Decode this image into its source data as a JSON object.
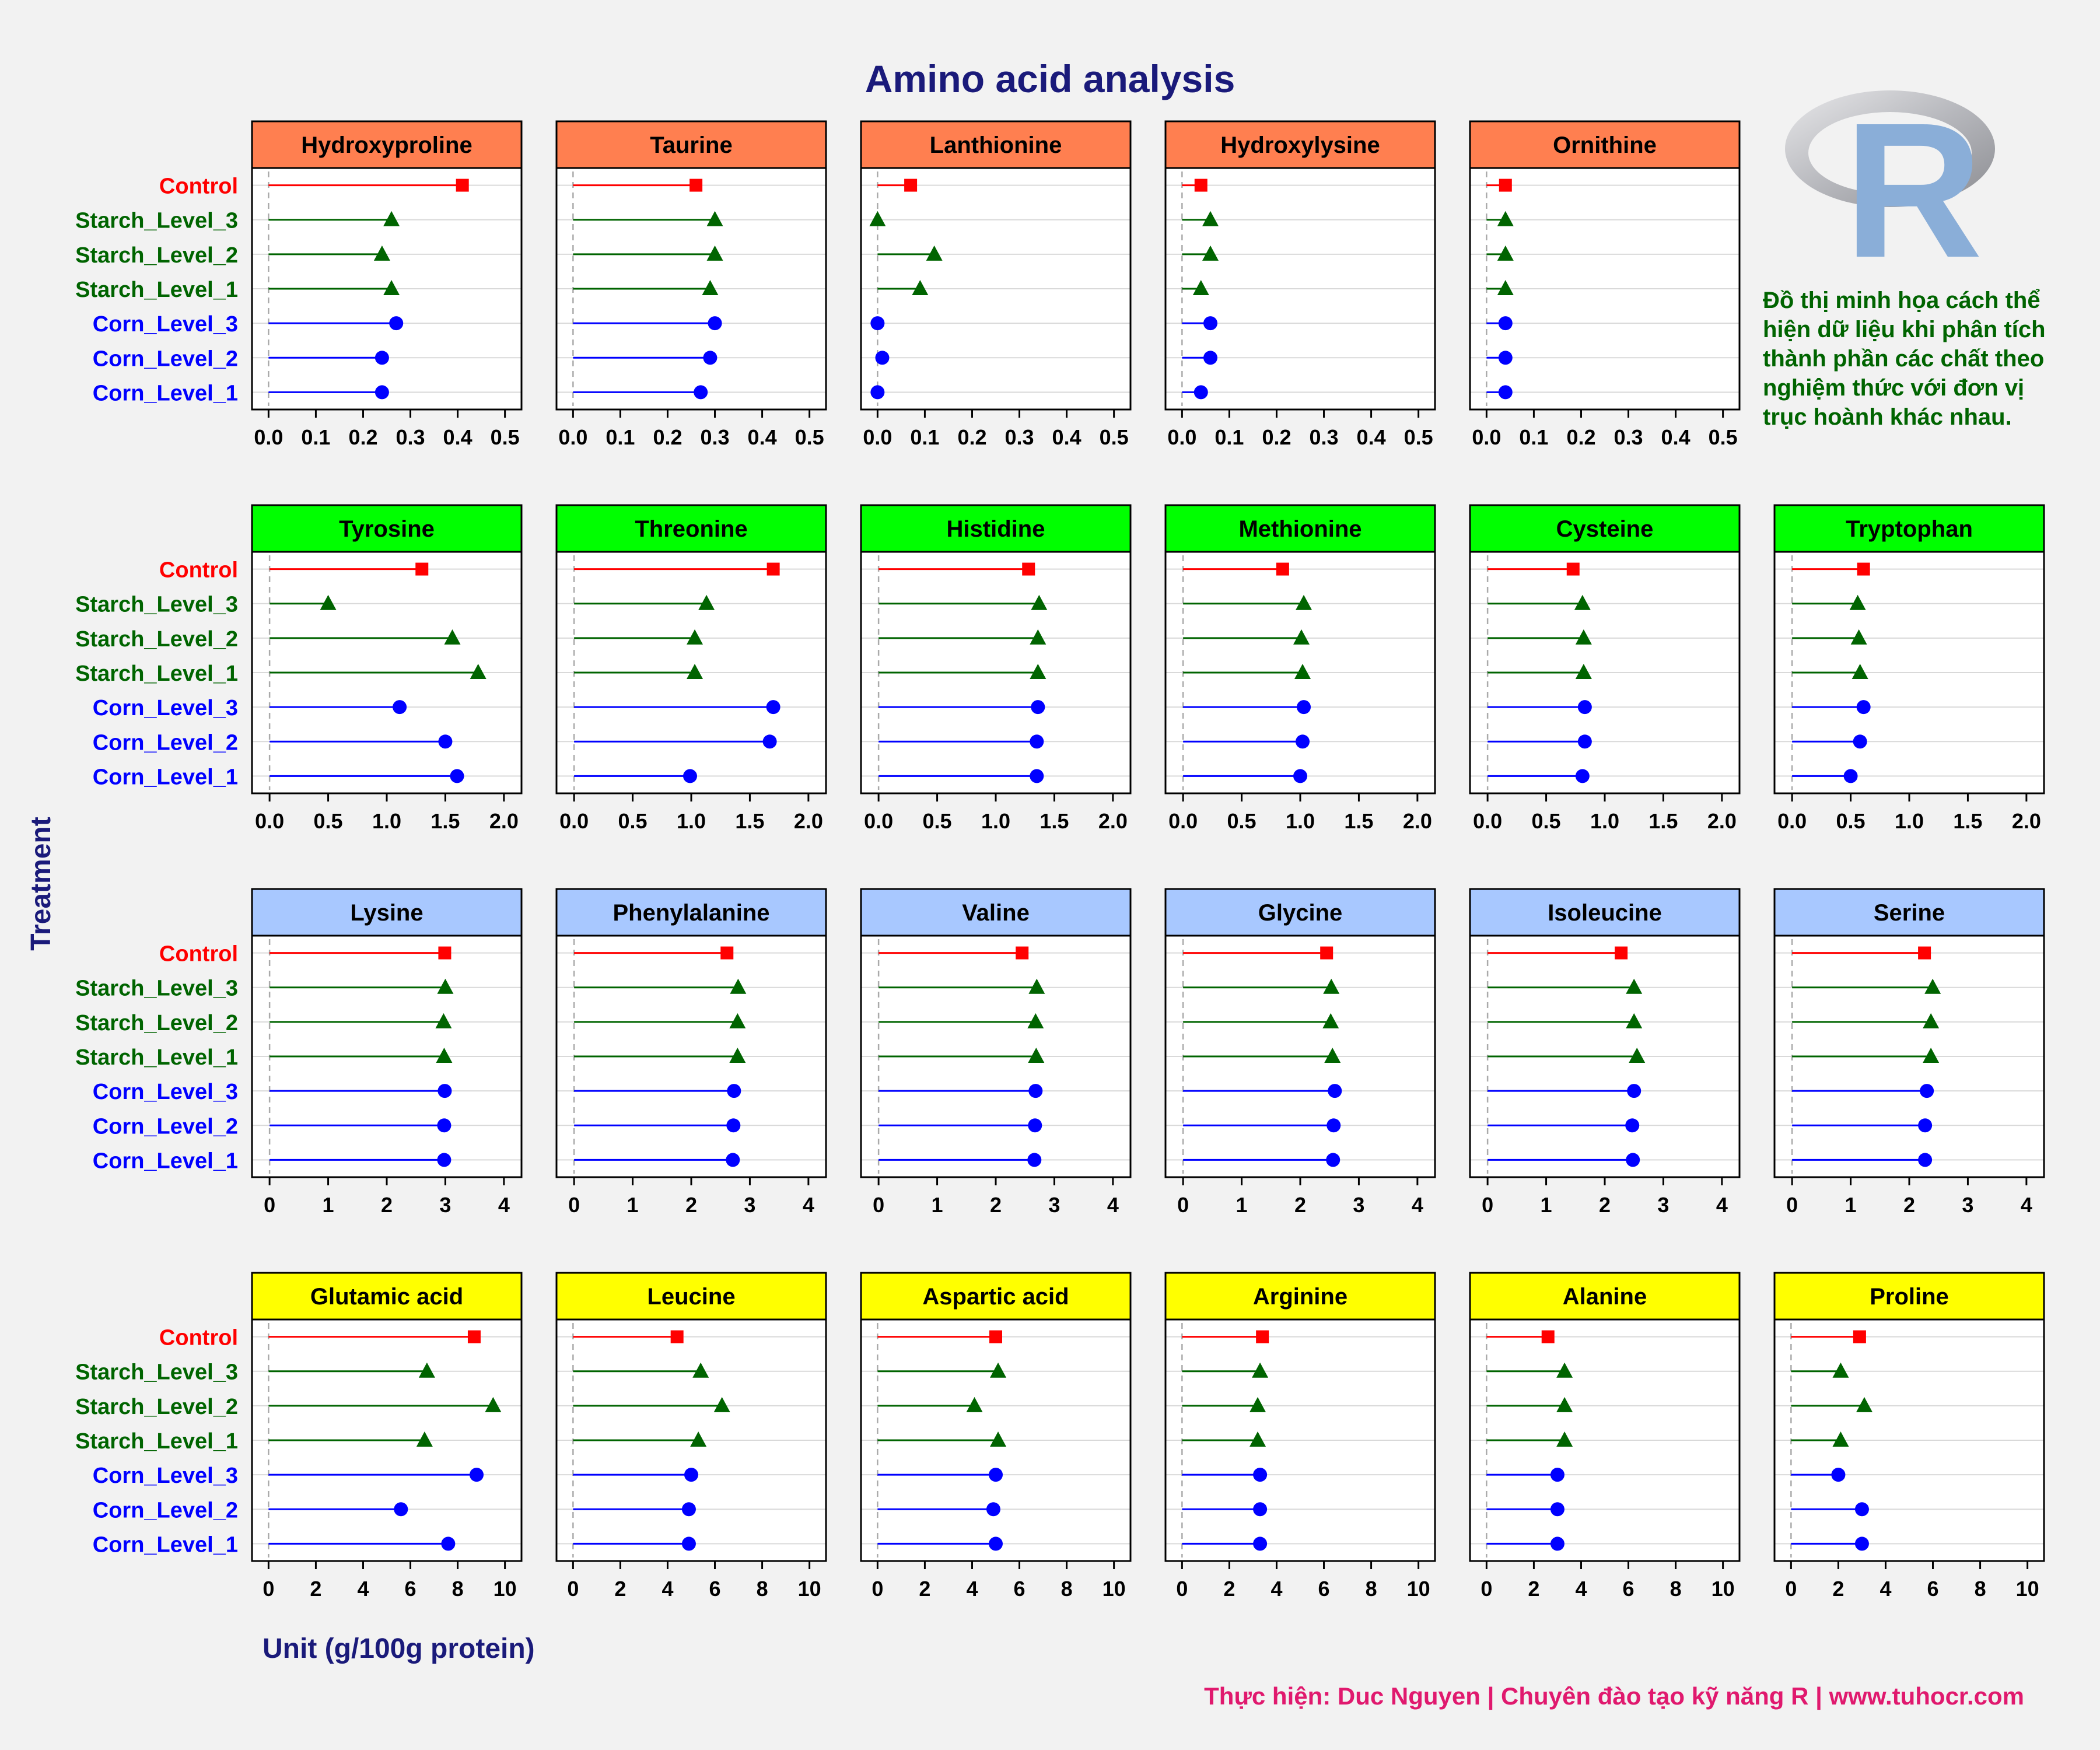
{
  "chart_data": {
    "type": "lollipop",
    "title": "Amino acid analysis",
    "xlabel": "Unit (g/100g protein)",
    "ylabel": "Treatment",
    "treatments": [
      "Control",
      "Starch_Level_3",
      "Starch_Level_2",
      "Starch_Level_1",
      "Corn_Level_3",
      "Corn_Level_2",
      "Corn_Level_1"
    ],
    "treatment_colors": [
      "#ff0000",
      "#006400",
      "#006400",
      "#006400",
      "#0000ff",
      "#0000ff",
      "#0000ff"
    ],
    "treatment_markers": [
      "square",
      "triangle",
      "triangle",
      "triangle",
      "circle",
      "circle",
      "circle"
    ],
    "rows": [
      {
        "strip_color": "#ff7f50",
        "xlim": [
          -0.035,
          0.535
        ],
        "ticks": [
          0,
          0.1,
          0.2,
          0.3,
          0.4,
          0.5
        ],
        "tick_labels": [
          "0.0",
          "0.1",
          "0.2",
          "0.3",
          "0.4",
          "0.5"
        ],
        "panels": [
          {
            "name": "Hydroxyproline",
            "values": [
              0.41,
              0.26,
              0.24,
              0.26,
              0.27,
              0.24,
              0.24
            ]
          },
          {
            "name": "Taurine",
            "values": [
              0.26,
              0.3,
              0.3,
              0.29,
              0.3,
              0.29,
              0.27
            ]
          },
          {
            "name": "Lanthionine",
            "values": [
              0.07,
              0.0,
              0.12,
              0.09,
              0.0,
              0.01,
              0.0
            ]
          },
          {
            "name": "Hydroxylysine",
            "values": [
              0.04,
              0.06,
              0.06,
              0.04,
              0.06,
              0.06,
              0.04
            ]
          },
          {
            "name": "Ornithine",
            "values": [
              0.04,
              0.04,
              0.04,
              0.04,
              0.04,
              0.04,
              0.04
            ]
          }
        ]
      },
      {
        "strip_color": "#00ff00",
        "xlim": [
          -0.15,
          2.15
        ],
        "ticks": [
          0,
          0.5,
          1,
          1.5,
          2
        ],
        "tick_labels": [
          "0.0",
          "0.5",
          "1.0",
          "1.5",
          "2.0"
        ],
        "panels": [
          {
            "name": "Tyrosine",
            "values": [
              1.3,
              0.5,
              1.56,
              1.78,
              1.11,
              1.5,
              1.6
            ]
          },
          {
            "name": "Threonine",
            "values": [
              1.7,
              1.13,
              1.03,
              1.03,
              1.7,
              1.67,
              0.99
            ]
          },
          {
            "name": "Histidine",
            "values": [
              1.28,
              1.37,
              1.36,
              1.36,
              1.36,
              1.35,
              1.35
            ]
          },
          {
            "name": "Methionine",
            "values": [
              0.85,
              1.03,
              1.01,
              1.02,
              1.03,
              1.02,
              1.0
            ]
          },
          {
            "name": "Cysteine",
            "values": [
              0.73,
              0.81,
              0.82,
              0.82,
              0.83,
              0.83,
              0.81
            ]
          },
          {
            "name": "Tryptophan",
            "values": [
              0.61,
              0.56,
              0.57,
              0.58,
              0.61,
              0.58,
              0.5
            ]
          }
        ]
      },
      {
        "strip_color": "#a8c8ff",
        "xlim": [
          -0.3,
          4.3
        ],
        "ticks": [
          0,
          1,
          2,
          3,
          4
        ],
        "tick_labels": [
          "0",
          "1",
          "2",
          "3",
          "4"
        ],
        "panels": [
          {
            "name": "Lysine",
            "values": [
              2.99,
              3.0,
              2.97,
              2.98,
              2.99,
              2.98,
              2.98
            ]
          },
          {
            "name": "Phenylalanine",
            "values": [
              2.61,
              2.8,
              2.79,
              2.79,
              2.73,
              2.72,
              2.71
            ]
          },
          {
            "name": "Valine",
            "values": [
              2.45,
              2.7,
              2.68,
              2.69,
              2.68,
              2.67,
              2.66
            ]
          },
          {
            "name": "Glycine",
            "values": [
              2.45,
              2.53,
              2.52,
              2.55,
              2.59,
              2.57,
              2.56
            ]
          },
          {
            "name": "Isoleucine",
            "values": [
              2.28,
              2.5,
              2.5,
              2.55,
              2.5,
              2.47,
              2.48
            ]
          },
          {
            "name": "Serine",
            "values": [
              2.26,
              2.4,
              2.37,
              2.37,
              2.3,
              2.27,
              2.27
            ]
          }
        ]
      },
      {
        "strip_color": "#ffff00",
        "xlim": [
          -0.7,
          10.7
        ],
        "ticks": [
          0,
          2,
          4,
          6,
          8,
          10
        ],
        "tick_labels": [
          "0",
          "2",
          "4",
          "6",
          "8",
          "10"
        ],
        "panels": [
          {
            "name": "Glutamic acid",
            "values": [
              8.7,
              6.7,
              9.5,
              6.6,
              8.8,
              5.6,
              7.6
            ]
          },
          {
            "name": "Leucine",
            "values": [
              4.4,
              5.4,
              6.3,
              5.3,
              5.0,
              4.9,
              4.9
            ]
          },
          {
            "name": "Aspartic acid",
            "values": [
              5.0,
              5.1,
              4.1,
              5.1,
              5.0,
              4.9,
              5.0
            ]
          },
          {
            "name": "Arginine",
            "values": [
              3.4,
              3.3,
              3.2,
              3.2,
              3.3,
              3.3,
              3.3
            ]
          },
          {
            "name": "Alanine",
            "values": [
              2.6,
              3.3,
              3.3,
              3.3,
              3.0,
              3.0,
              3.0
            ]
          },
          {
            "name": "Proline",
            "values": [
              2.9,
              2.1,
              3.1,
              2.1,
              2.0,
              3.0,
              3.0
            ]
          }
        ]
      }
    ]
  },
  "logo": {
    "letter": "R"
  },
  "note": "Đồ thị minh họa cách thể hiện dữ liệu khi phân tích thành phần các chất theo nghiệm thức với đơn vị trục hoành khác nhau.",
  "note_color": "#006400",
  "footer": "Thực hiện: Duc Nguyen | Chuyên đào tạo kỹ năng R | www.tuhocr.com",
  "footer_color": "#e0196e",
  "title_color": "#1a1a7a"
}
